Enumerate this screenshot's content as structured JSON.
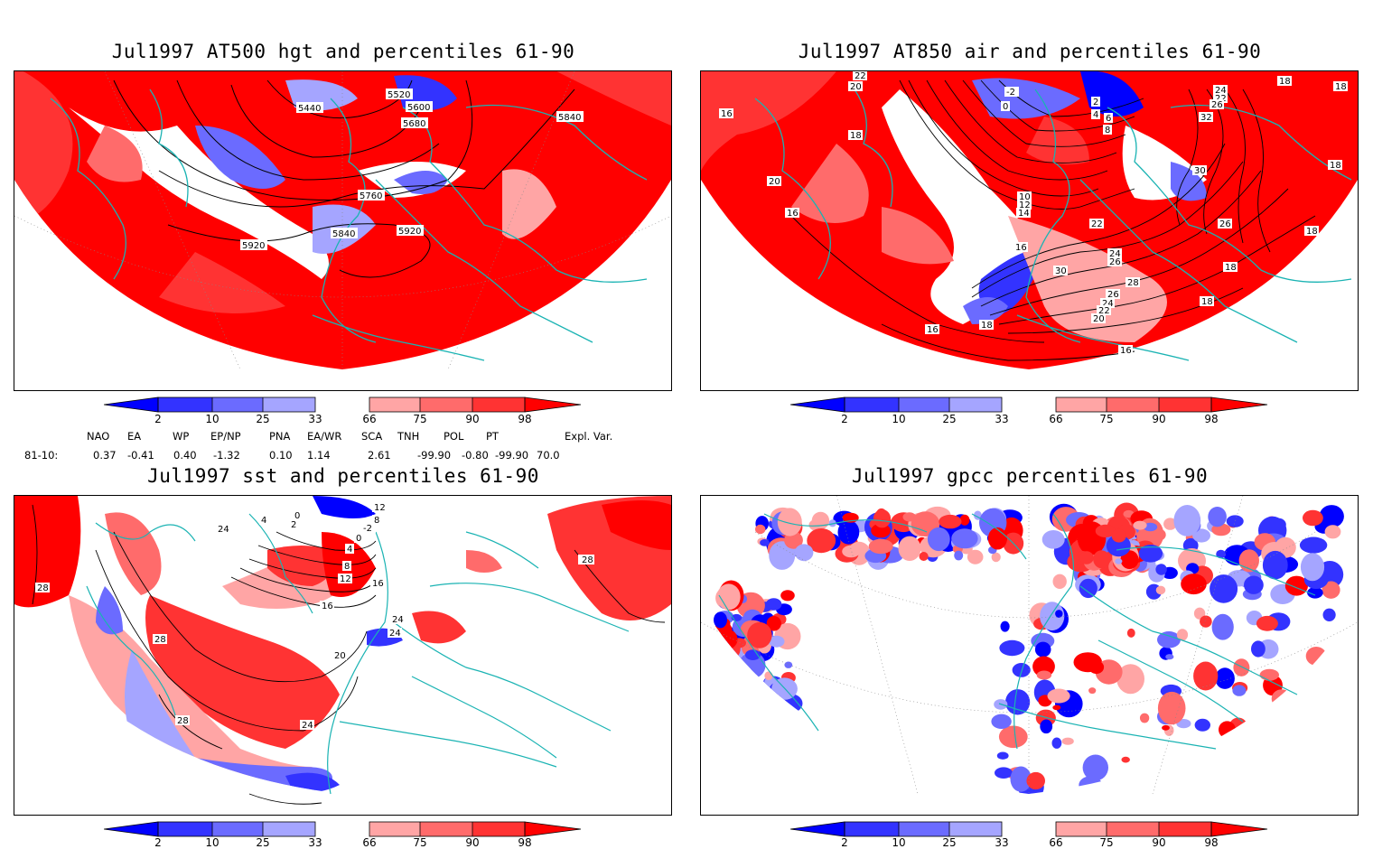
{
  "panels": [
    {
      "title": "Jul1997 AT500 hgt and percentiles 61-90",
      "contour_labels": [
        "5440",
        "5520",
        "5600",
        "5680",
        "5840",
        "5760",
        "5840",
        "5920",
        "5920"
      ]
    },
    {
      "title": "Jul1997 AT850 air and percentiles 61-90",
      "contour_labels": [
        "22",
        "20",
        "16",
        "18",
        "20",
        "16",
        "-2",
        "0",
        "2",
        "4",
        "6",
        "8",
        "10",
        "12",
        "14",
        "22",
        "24",
        "26",
        "16",
        "30",
        "28",
        "26",
        "24",
        "22",
        "20",
        "18",
        "16",
        "16",
        "18",
        "24",
        "22",
        "26",
        "32",
        "30",
        "26",
        "18",
        "18",
        "18",
        "18",
        "18"
      ]
    },
    {
      "title": "Jul1997 sst and percentiles 61-90",
      "contour_labels": [
        "28",
        "24",
        "28",
        "28",
        "24",
        "20",
        "16",
        "12",
        "8",
        "4",
        "0",
        "-2",
        "8",
        "12",
        "16",
        "24",
        "16",
        "28",
        "24",
        "2",
        "4",
        "0"
      ]
    },
    {
      "title": "Jul1997 gpcc percentiles 61-90",
      "contour_labels": []
    }
  ],
  "colorbar": {
    "ticks": [
      "2",
      "10",
      "25",
      "33",
      "66",
      "75",
      "90",
      "98"
    ],
    "colors": {
      "below_2": "#0000ff",
      "b2_10": "#3333ff",
      "b10_25": "#6b6bff",
      "b25_33": "#a5a5ff",
      "b33_66": "#ffffff",
      "b66_75": "#ffa5a5",
      "b75_90": "#ff6b6b",
      "b90_98": "#ff3333",
      "above_98": "#ff0000"
    }
  },
  "indices": {
    "headers": [
      "NAO",
      "EA",
      "WP",
      "EP/NP",
      "PNA",
      "EA/WR",
      "SCA",
      "TNH",
      "POL",
      "PT",
      "Expl. Var."
    ],
    "row_label": "81-10:",
    "values": [
      "0.37",
      "-0.41",
      "0.40",
      "-1.32",
      "0.10",
      "1.14",
      "2.61",
      "-99.90",
      "-0.80",
      "-99.90",
      "70.0"
    ]
  },
  "map_colors": {
    "coast": "#1ab3b3",
    "contour": "#000000",
    "grid": "#888888"
  }
}
